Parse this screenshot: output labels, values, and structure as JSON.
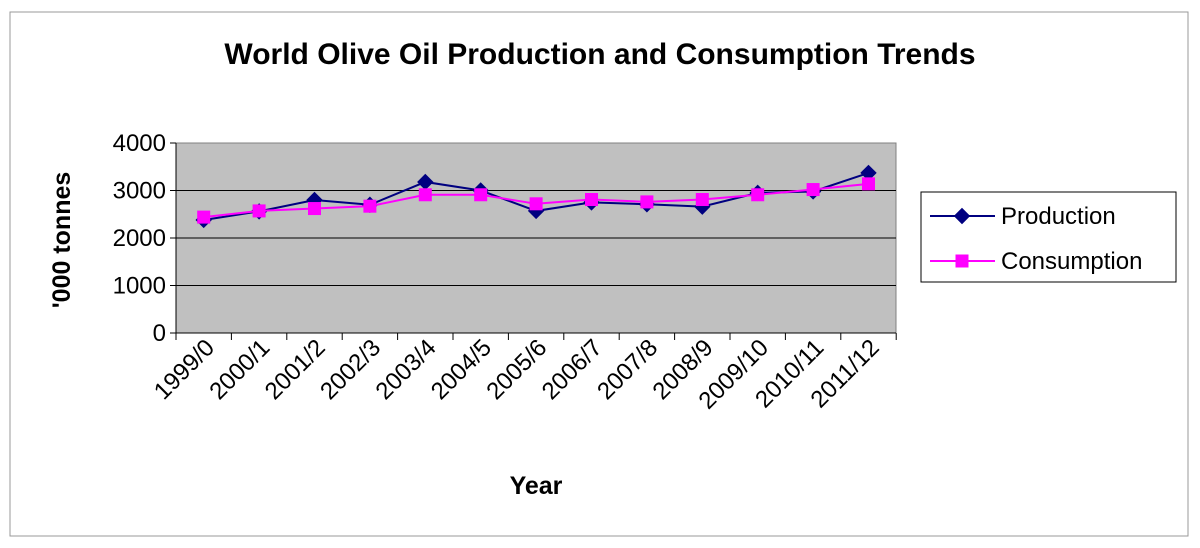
{
  "chart_data": {
    "type": "line",
    "title": "World Olive Oil Production and Consumption  Trends",
    "xlabel": "Year",
    "ylabel": "'000 tonnes",
    "categories": [
      "1999/0",
      "2000/1",
      "2001/2",
      "2002/3",
      "2003/4",
      "2004/5",
      "2005/6",
      "2006/7",
      "2007/8",
      "2008/9",
      "2009/10",
      "2010/11",
      "2011/12"
    ],
    "ylim": [
      0,
      4000
    ],
    "yticks": [
      "0",
      "1000",
      "2000",
      "3000",
      "4000"
    ],
    "grid": true,
    "legend_position": "right",
    "series": [
      {
        "name": "Production",
        "color": "#000080",
        "marker": "diamond",
        "values": [
          2380,
          2560,
          2800,
          2700,
          3180,
          3000,
          2570,
          2750,
          2710,
          2660,
          2950,
          2980,
          3370
        ]
      },
      {
        "name": "Consumption",
        "color": "#ff00ff",
        "marker": "square",
        "values": [
          2440,
          2570,
          2620,
          2670,
          2910,
          2910,
          2720,
          2810,
          2760,
          2810,
          2910,
          3020,
          3140
        ]
      }
    ],
    "plot_background": "#c0c0c0"
  }
}
